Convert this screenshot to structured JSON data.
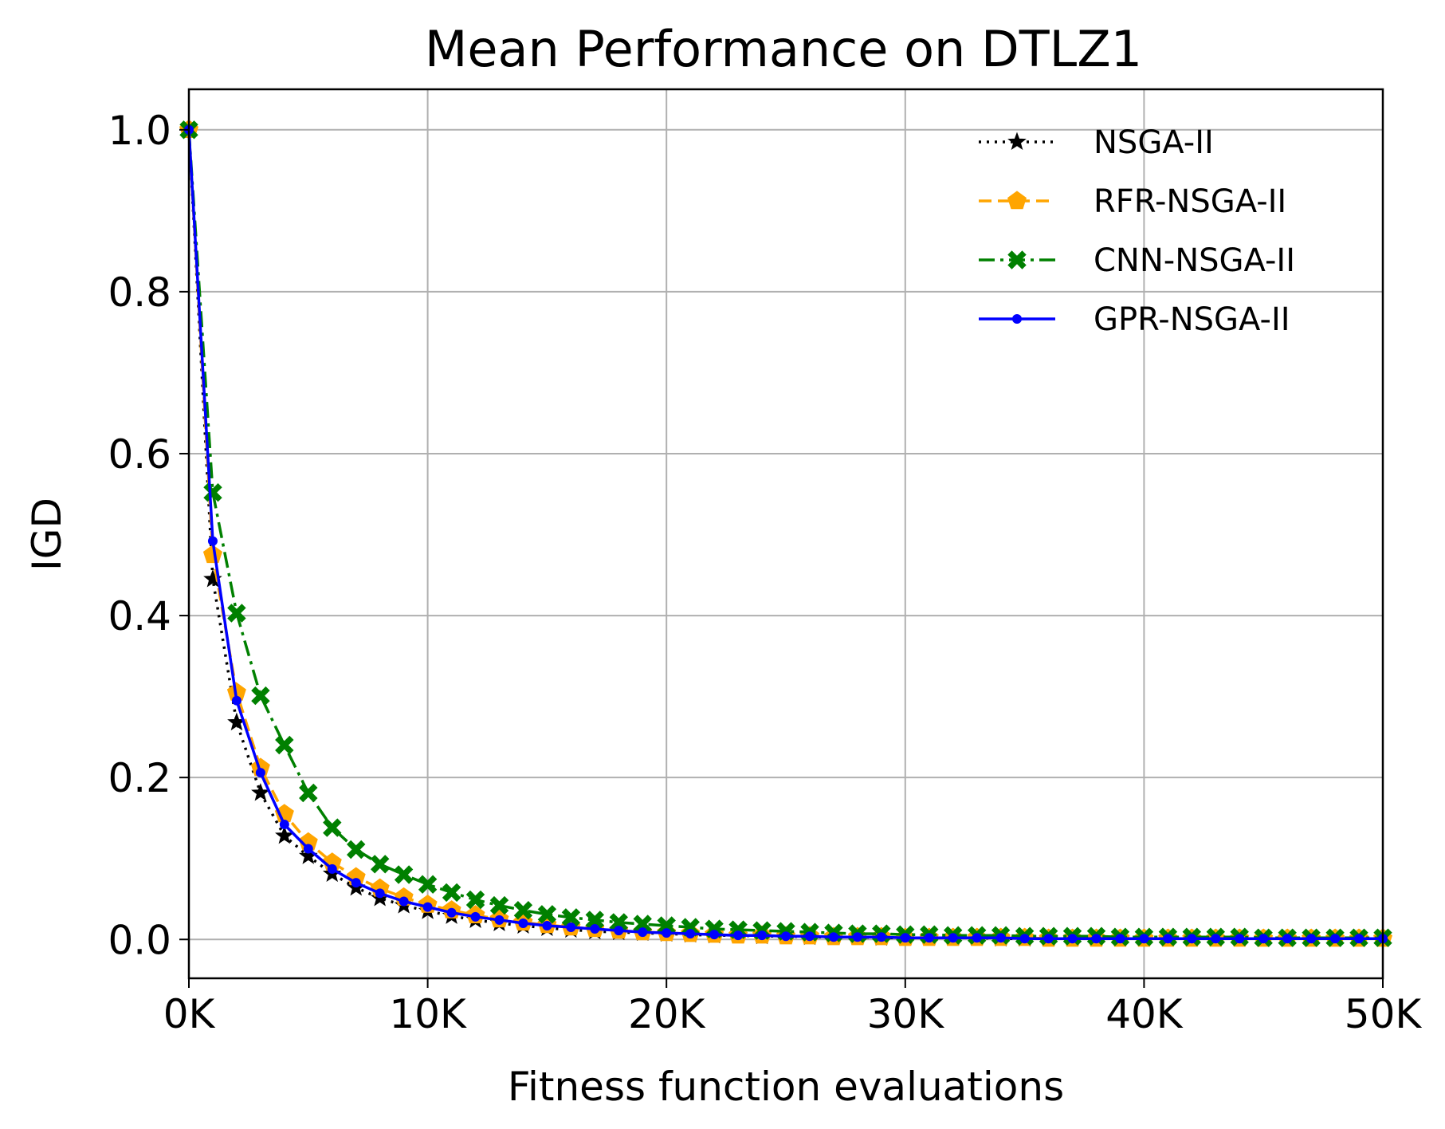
{
  "chart_data": {
    "type": "line",
    "title": "Mean Performance on DTLZ1",
    "xlabel": "Fitness function evaluations",
    "ylabel": "IGD",
    "xlim": [
      0,
      50000
    ],
    "ylim": [
      -0.048,
      1.05
    ],
    "xticks": [
      0,
      10000,
      20000,
      30000,
      40000,
      50000
    ],
    "xtick_labels": [
      "0K",
      "10K",
      "20K",
      "30K",
      "40K",
      "50K"
    ],
    "yticks": [
      0.0,
      0.2,
      0.4,
      0.6,
      0.8,
      1.0
    ],
    "ytick_labels": [
      "0.0",
      "0.2",
      "0.4",
      "0.6",
      "0.8",
      "1.0"
    ],
    "grid": true,
    "legend_position": "top-right",
    "x": [
      0,
      1000,
      2000,
      3000,
      4000,
      5000,
      6000,
      7000,
      8000,
      9000,
      10000,
      11000,
      12000,
      13000,
      14000,
      15000,
      16000,
      17000,
      18000,
      19000,
      20000,
      21000,
      22000,
      23000,
      24000,
      25000,
      26000,
      27000,
      28000,
      29000,
      30000,
      31000,
      32000,
      33000,
      34000,
      35000,
      36000,
      37000,
      38000,
      39000,
      40000,
      41000,
      42000,
      43000,
      44000,
      45000,
      46000,
      47000,
      48000,
      49000,
      50000
    ],
    "series": [
      {
        "name": "NSGA-II",
        "color": "#000000",
        "line_style": "dotted",
        "marker": "star",
        "values": [
          1.0,
          0.445,
          0.268,
          0.181,
          0.128,
          0.103,
          0.081,
          0.064,
          0.051,
          0.042,
          0.035,
          0.029,
          0.024,
          0.02,
          0.017,
          0.014,
          0.012,
          0.01,
          0.009,
          0.008,
          0.007,
          0.006,
          0.005,
          0.005,
          0.004,
          0.004,
          0.003,
          0.003,
          0.003,
          0.002,
          0.002,
          0.002,
          0.002,
          0.002,
          0.001,
          0.001,
          0.001,
          0.001,
          0.001,
          0.001,
          0.001,
          0.001,
          0.001,
          0.001,
          0.001,
          0.001,
          0.001,
          0.001,
          0.001,
          0.001,
          0.001
        ]
      },
      {
        "name": "RFR-NSGA-II",
        "color": "#FFA500",
        "line_style": "dashed",
        "marker": "pentagon",
        "values": [
          1.0,
          0.475,
          0.305,
          0.212,
          0.155,
          0.12,
          0.095,
          0.077,
          0.063,
          0.052,
          0.043,
          0.036,
          0.03,
          0.025,
          0.021,
          0.018,
          0.015,
          0.013,
          0.011,
          0.009,
          0.008,
          0.007,
          0.006,
          0.005,
          0.005,
          0.004,
          0.004,
          0.003,
          0.003,
          0.003,
          0.002,
          0.002,
          0.002,
          0.002,
          0.002,
          0.002,
          0.001,
          0.001,
          0.001,
          0.001,
          0.001,
          0.001,
          0.001,
          0.001,
          0.001,
          0.001,
          0.001,
          0.001,
          0.001,
          0.001,
          0.001
        ]
      },
      {
        "name": "CNN-NSGA-II",
        "color": "#008000",
        "line_style": "dashdot",
        "marker": "x",
        "values": [
          1.0,
          0.552,
          0.403,
          0.301,
          0.24,
          0.181,
          0.138,
          0.111,
          0.093,
          0.08,
          0.068,
          0.058,
          0.049,
          0.042,
          0.036,
          0.031,
          0.027,
          0.024,
          0.021,
          0.019,
          0.017,
          0.015,
          0.013,
          0.012,
          0.011,
          0.01,
          0.009,
          0.008,
          0.007,
          0.007,
          0.006,
          0.006,
          0.005,
          0.005,
          0.005,
          0.004,
          0.004,
          0.004,
          0.004,
          0.003,
          0.003,
          0.003,
          0.003,
          0.003,
          0.003,
          0.002,
          0.002,
          0.002,
          0.002,
          0.002,
          0.002
        ]
      },
      {
        "name": "GPR-NSGA-II",
        "color": "#0000FF",
        "line_style": "solid",
        "marker": "point",
        "values": [
          1.0,
          0.492,
          0.295,
          0.206,
          0.142,
          0.112,
          0.087,
          0.07,
          0.057,
          0.047,
          0.04,
          0.033,
          0.028,
          0.024,
          0.02,
          0.017,
          0.015,
          0.013,
          0.011,
          0.009,
          0.008,
          0.007,
          0.006,
          0.005,
          0.005,
          0.004,
          0.004,
          0.003,
          0.003,
          0.003,
          0.002,
          0.002,
          0.002,
          0.002,
          0.002,
          0.001,
          0.001,
          0.001,
          0.001,
          0.001,
          0.001,
          0.001,
          0.001,
          0.001,
          0.001,
          0.001,
          0.001,
          0.001,
          0.001,
          0.001,
          0.001
        ]
      }
    ]
  }
}
